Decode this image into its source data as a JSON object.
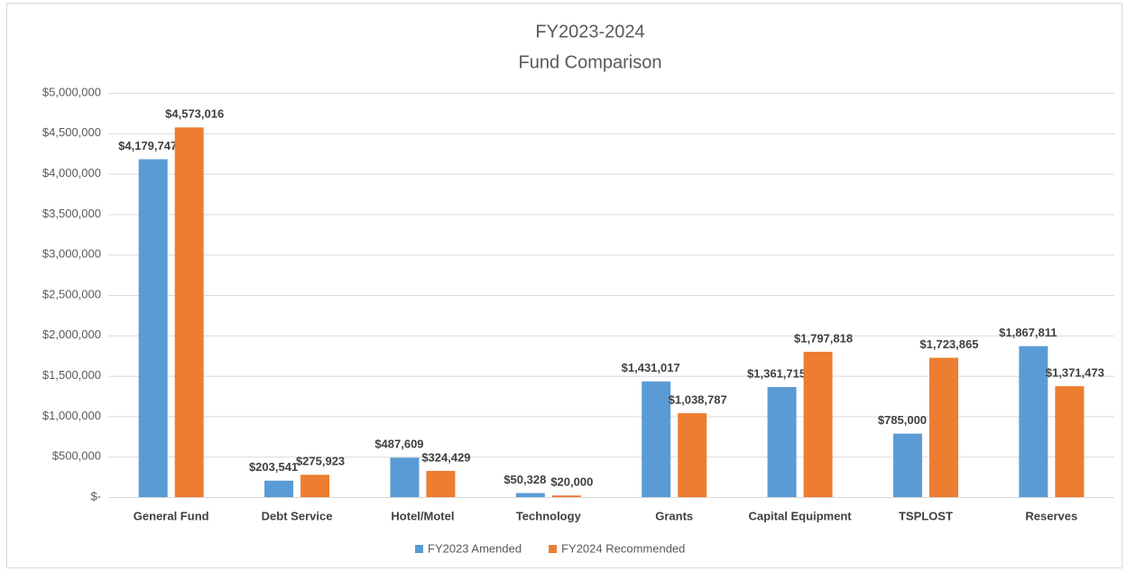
{
  "chart_data": {
    "type": "bar",
    "title": "FY2023-2024",
    "subtitle": "Fund Comparison",
    "categories": [
      "General Fund",
      "Debt Service",
      "Hotel/Motel",
      "Technology",
      "Grants",
      "Capital Equipment",
      "TSPLOST",
      "Reserves"
    ],
    "series": [
      {
        "name": "FY2023 Amended",
        "color": "#5b9bd5",
        "values": [
          4179747,
          203541,
          487609,
          50328,
          1431017,
          1361715,
          785000,
          1867811
        ],
        "value_labels": [
          "$4,179,747",
          "$203,541",
          "$487,609",
          "$50,328",
          "$1,431,017",
          "$1,361,715",
          "$785,000",
          "$1,867,811"
        ]
      },
      {
        "name": "FY2024 Recommended",
        "color": "#ed7d31",
        "values": [
          4573016,
          275923,
          324429,
          20000,
          1038787,
          1797818,
          1723865,
          1371473
        ],
        "value_labels": [
          "$4,573,016",
          "$275,923",
          "$324,429",
          "$20,000",
          "$1,038,787",
          "$1,797,818",
          "$1,723,865",
          "$1,371,473"
        ]
      }
    ],
    "ylim": [
      0,
      5000000
    ],
    "yticks": [
      {
        "value": 0,
        "label": "$-"
      },
      {
        "value": 500000,
        "label": "$500,000"
      },
      {
        "value": 1000000,
        "label": "$1,000,000"
      },
      {
        "value": 1500000,
        "label": "$1,500,000"
      },
      {
        "value": 2000000,
        "label": "$2,000,000"
      },
      {
        "value": 2500000,
        "label": "$2,500,000"
      },
      {
        "value": 3000000,
        "label": "$3,000,000"
      },
      {
        "value": 3500000,
        "label": "$3,500,000"
      },
      {
        "value": 4000000,
        "label": "$4,000,000"
      },
      {
        "value": 4500000,
        "label": "$4,500,000"
      },
      {
        "value": 5000000,
        "label": "$5,000,000"
      }
    ],
    "grid": true,
    "legend": "bottom"
  }
}
